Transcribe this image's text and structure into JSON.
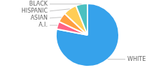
{
  "chart_data": {
    "type": "pie",
    "categories": [
      "WHITE",
      "A.I.",
      "ASIAN",
      "HISPANIC",
      "BLACK"
    ],
    "values": [
      78,
      4,
      5,
      7,
      6
    ]
  }
}
